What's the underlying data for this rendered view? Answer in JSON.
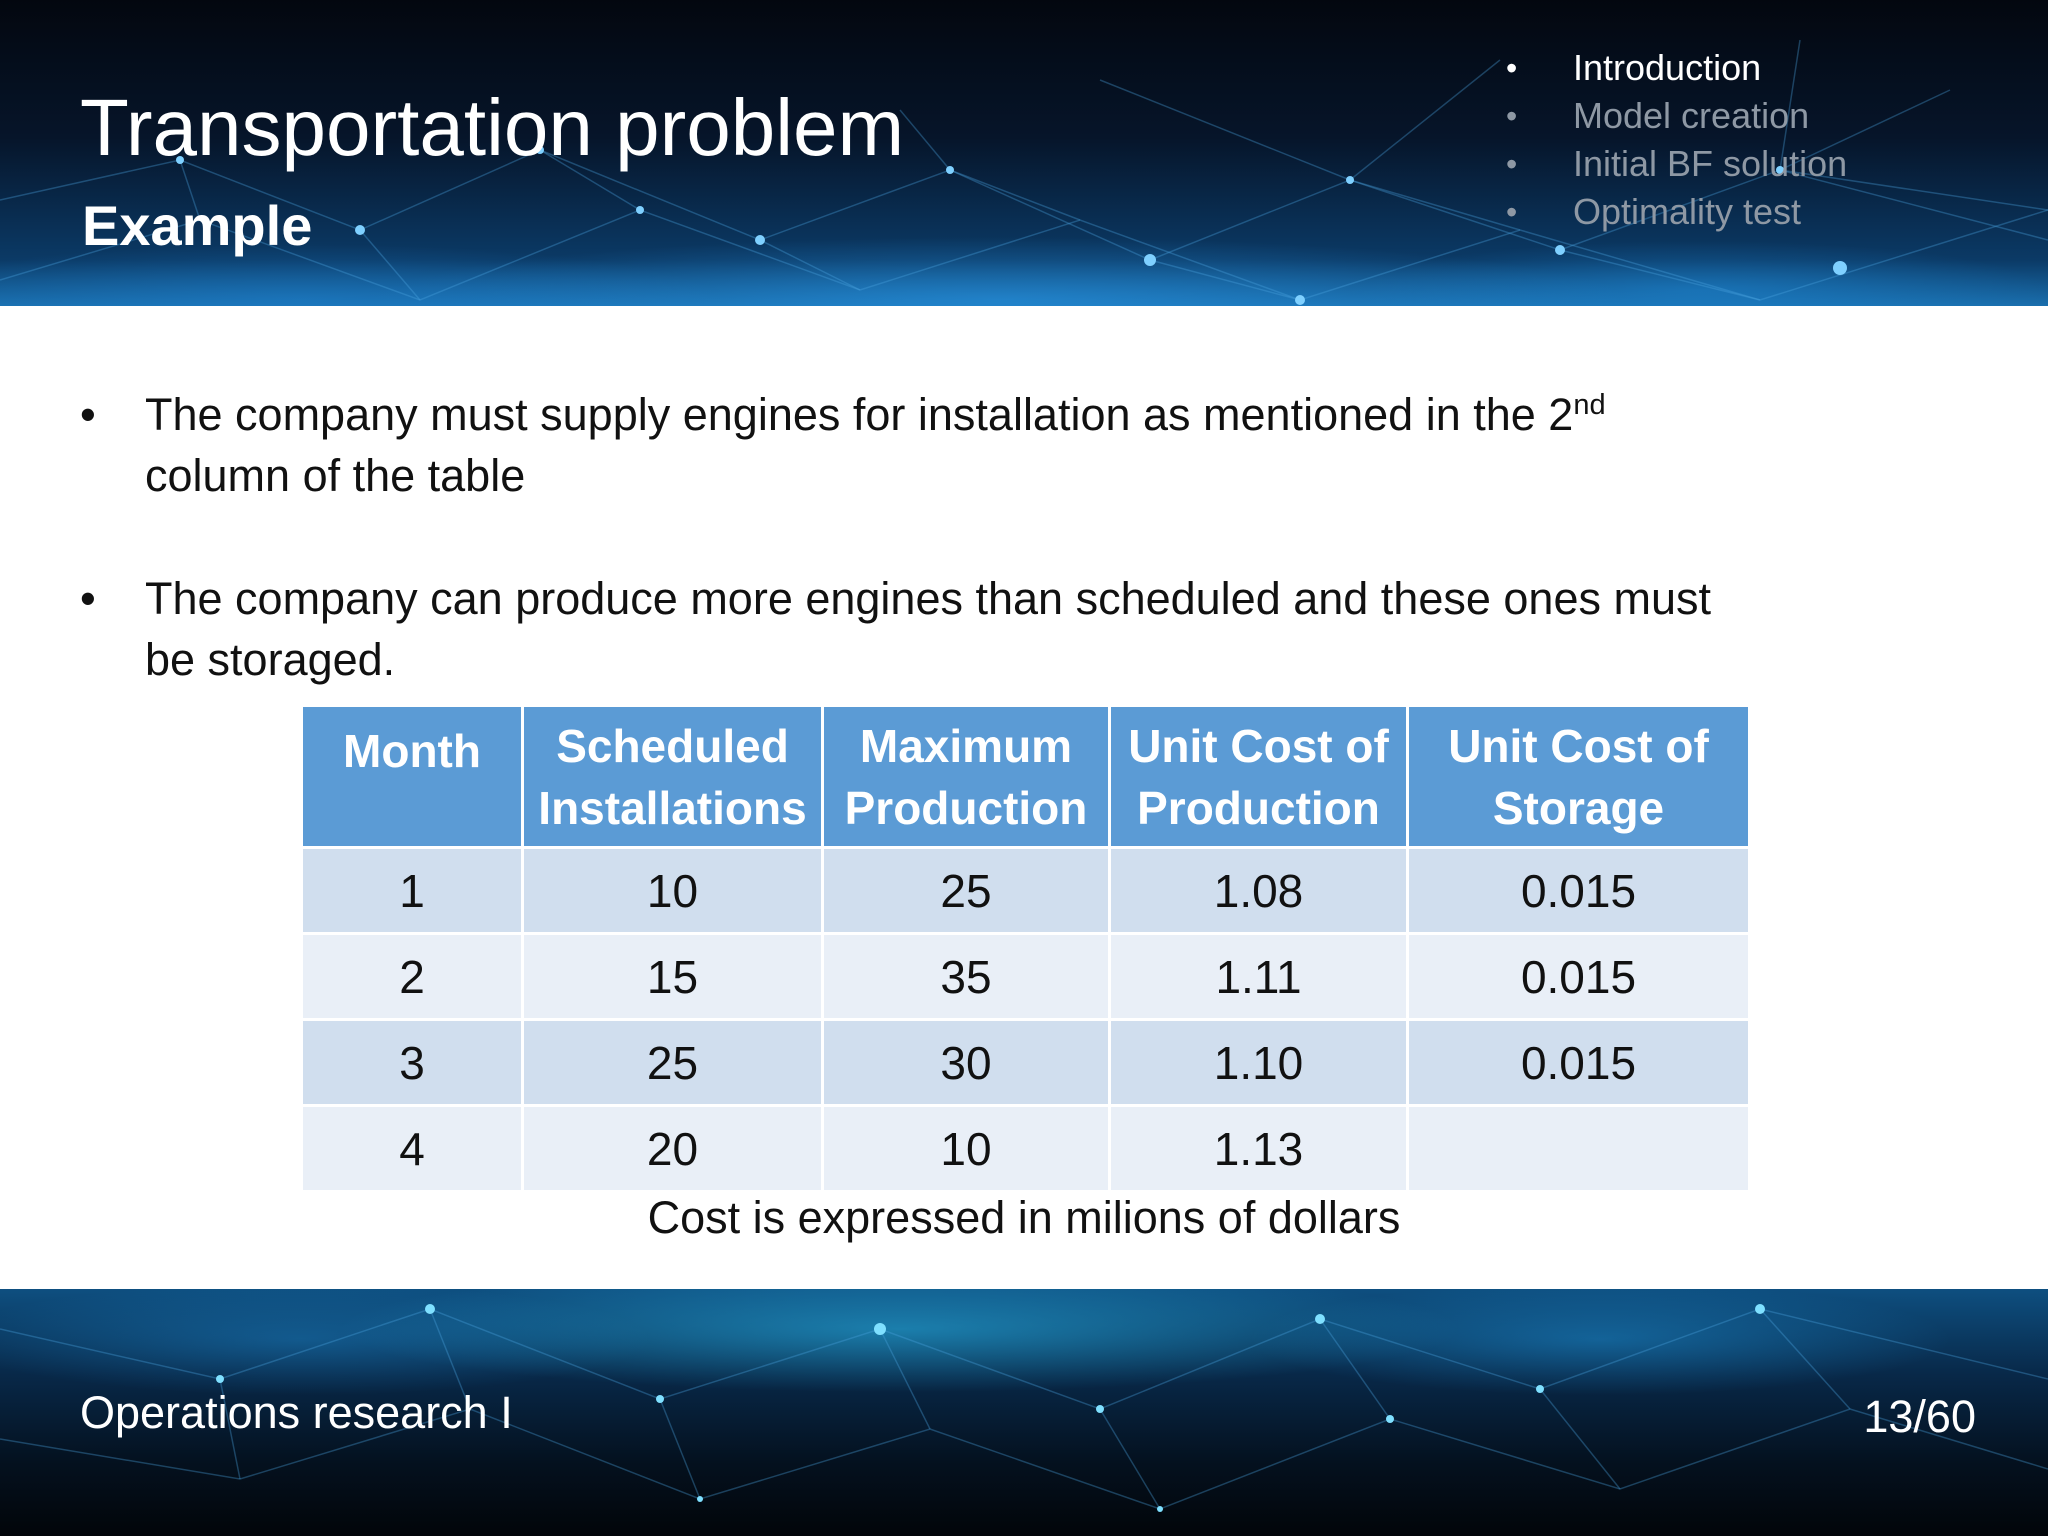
{
  "header": {
    "title": "Transportation problem",
    "subtitle": "Example",
    "toc": [
      {
        "label": "Introduction",
        "active": true
      },
      {
        "label": "Model creation",
        "active": false
      },
      {
        "label": "Initial BF solution",
        "active": false
      },
      {
        "label": "Optimality test",
        "active": false
      }
    ]
  },
  "content": {
    "bullet_1": "The company must supply engines for installation as mentioned in the 2",
    "bullet_1_sup": "nd",
    "bullet_1_end": "column of the table",
    "bullet_2": "The company can produce more engines than scheduled and these ones must be storaged."
  },
  "table": {
    "headers": [
      [
        "Month"
      ],
      [
        "Scheduled",
        "Installations"
      ],
      [
        "Maximum",
        "Production"
      ],
      [
        "Unit Cost of",
        "Production"
      ],
      [
        "Unit Cost of",
        "Storage"
      ]
    ],
    "rows": [
      [
        "1",
        "10",
        "25",
        "1.08",
        "0.015"
      ],
      [
        "2",
        "15",
        "35",
        "1.11",
        "0.015"
      ],
      [
        "3",
        "25",
        "30",
        "1.10",
        "0.015"
      ],
      [
        "4",
        "20",
        "10",
        "1.13",
        ""
      ]
    ]
  },
  "note": "Cost is expressed in milions of dollars",
  "footer": {
    "course": "Operations research I",
    "page": "13/60"
  },
  "colors": {
    "table_header": "#5b9bd5",
    "row_odd": "#d0deee",
    "row_even": "#e9eff7"
  }
}
